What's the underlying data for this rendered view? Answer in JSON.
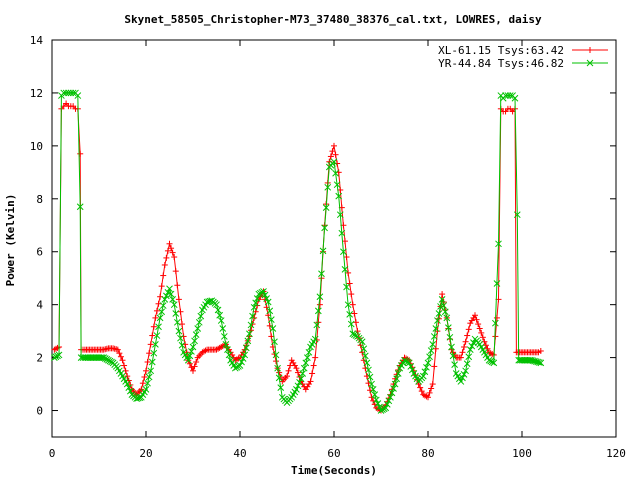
{
  "chart_data": {
    "type": "line",
    "title": "Skynet_58505_Christopher-M73_37480_38376_cal.txt, LOWRES, daisy",
    "xlabel": "Time(Seconds)",
    "ylabel": "Power (Kelvin)",
    "xlim": [
      0,
      120
    ],
    "ylim": [
      -1,
      14
    ],
    "x_ticks": [
      0,
      20,
      40,
      60,
      80,
      100,
      120
    ],
    "y_ticks": [
      0,
      2,
      4,
      6,
      8,
      10,
      12,
      14
    ],
    "grid": false,
    "legend_position": "top-right",
    "series": [
      {
        "name": "XL-61.15 Tsys:63.42",
        "color": "#ff0000",
        "marker": "plus",
        "points": [
          [
            0.5,
            2.3
          ],
          [
            1.5,
            2.4
          ],
          [
            2,
            11.4
          ],
          [
            2.5,
            11.5
          ],
          [
            3,
            11.6
          ],
          [
            3.5,
            11.5
          ],
          [
            4,
            11.5
          ],
          [
            4.5,
            11.5
          ],
          [
            5,
            11.4
          ],
          [
            5.5,
            11.4
          ],
          [
            6,
            9.7
          ],
          [
            6.2,
            2.3
          ],
          [
            7,
            2.3
          ],
          [
            8,
            2.3
          ],
          [
            9,
            2.3
          ],
          [
            10,
            2.3
          ],
          [
            11,
            2.3
          ],
          [
            12,
            2.35
          ],
          [
            13,
            2.35
          ],
          [
            14,
            2.3
          ],
          [
            15,
            1.9
          ],
          [
            16,
            1.3
          ],
          [
            17,
            0.8
          ],
          [
            18,
            0.6
          ],
          [
            19,
            0.8
          ],
          [
            20,
            1.5
          ],
          [
            21,
            2.5
          ],
          [
            22,
            3.5
          ],
          [
            23,
            4.3
          ],
          [
            24,
            5.5
          ],
          [
            25,
            6.3
          ],
          [
            26,
            5.8
          ],
          [
            27,
            4.2
          ],
          [
            28,
            2.8
          ],
          [
            29,
            1.9
          ],
          [
            30,
            1.5
          ],
          [
            31,
            2.0
          ],
          [
            32,
            2.2
          ],
          [
            33,
            2.3
          ],
          [
            34,
            2.3
          ],
          [
            35,
            2.3
          ],
          [
            36,
            2.4
          ],
          [
            37,
            2.5
          ],
          [
            38,
            2.2
          ],
          [
            39,
            1.9
          ],
          [
            40,
            2.0
          ],
          [
            41,
            2.3
          ],
          [
            42,
            2.8
          ],
          [
            43,
            3.5
          ],
          [
            44,
            4.2
          ],
          [
            45,
            4.5
          ],
          [
            46,
            3.6
          ],
          [
            47,
            2.4
          ],
          [
            48,
            1.6
          ],
          [
            49,
            1.1
          ],
          [
            50,
            1.3
          ],
          [
            51,
            1.9
          ],
          [
            52,
            1.6
          ],
          [
            53,
            1.1
          ],
          [
            54,
            0.8
          ],
          [
            55,
            1.1
          ],
          [
            56,
            2.0
          ],
          [
            57,
            4.0
          ],
          [
            58,
            7.0
          ],
          [
            59,
            9.4
          ],
          [
            60,
            10.0
          ],
          [
            61,
            9.0
          ],
          [
            62,
            7.0
          ],
          [
            63,
            5.2
          ],
          [
            64,
            4.0
          ],
          [
            65,
            3.0
          ],
          [
            66,
            2.2
          ],
          [
            67,
            1.3
          ],
          [
            68,
            0.5
          ],
          [
            69,
            0.1
          ],
          [
            70,
            0.0
          ],
          [
            71,
            0.2
          ],
          [
            72,
            0.6
          ],
          [
            73,
            1.2
          ],
          [
            74,
            1.7
          ],
          [
            75,
            2.0
          ],
          [
            76,
            1.9
          ],
          [
            77,
            1.5
          ],
          [
            78,
            1.0
          ],
          [
            79,
            0.6
          ],
          [
            80,
            0.5
          ],
          [
            81,
            1.0
          ],
          [
            82,
            3.0
          ],
          [
            83,
            4.4
          ],
          [
            84,
            3.5
          ],
          [
            85,
            2.3
          ],
          [
            86,
            2.0
          ],
          [
            87,
            2.0
          ],
          [
            88,
            2.6
          ],
          [
            89,
            3.3
          ],
          [
            90,
            3.6
          ],
          [
            91,
            3.1
          ],
          [
            92,
            2.6
          ],
          [
            93,
            2.2
          ],
          [
            94,
            2.1
          ],
          [
            95,
            4.2
          ],
          [
            95.5,
            11.4
          ],
          [
            96,
            11.3
          ],
          [
            96.5,
            11.3
          ],
          [
            97,
            11.4
          ],
          [
            97.5,
            11.4
          ],
          [
            98,
            11.3
          ],
          [
            98.5,
            11.4
          ],
          [
            98.8,
            2.2
          ],
          [
            99.5,
            2.2
          ],
          [
            100.5,
            2.2
          ],
          [
            101.5,
            2.2
          ],
          [
            102.5,
            2.2
          ],
          [
            103.5,
            2.2
          ],
          [
            104,
            2.25
          ]
        ]
      },
      {
        "name": "YR-44.84 Tsys:46.82",
        "color": "#00c000",
        "marker": "cross",
        "points": [
          [
            0.5,
            2.0
          ],
          [
            1.5,
            2.1
          ],
          [
            2,
            11.9
          ],
          [
            2.5,
            12.0
          ],
          [
            3,
            12.0
          ],
          [
            3.5,
            12.0
          ],
          [
            4,
            12.0
          ],
          [
            4.5,
            12.0
          ],
          [
            5,
            12.0
          ],
          [
            5.5,
            11.9
          ],
          [
            6,
            7.7
          ],
          [
            6.2,
            2.0
          ],
          [
            7,
            2.0
          ],
          [
            8,
            2.0
          ],
          [
            9,
            2.0
          ],
          [
            10,
            2.0
          ],
          [
            11,
            2.0
          ],
          [
            12,
            1.9
          ],
          [
            13,
            1.8
          ],
          [
            14,
            1.6
          ],
          [
            15,
            1.3
          ],
          [
            16,
            1.0
          ],
          [
            17,
            0.6
          ],
          [
            18,
            0.45
          ],
          [
            19,
            0.5
          ],
          [
            20,
            0.8
          ],
          [
            21,
            1.5
          ],
          [
            22,
            2.5
          ],
          [
            23,
            3.5
          ],
          [
            24,
            4.2
          ],
          [
            25,
            4.6
          ],
          [
            26,
            4.0
          ],
          [
            27,
            3.0
          ],
          [
            28,
            2.2
          ],
          [
            29,
            1.9
          ],
          [
            30,
            2.4
          ],
          [
            31,
            3.1
          ],
          [
            32,
            3.8
          ],
          [
            33,
            4.1
          ],
          [
            34,
            4.15
          ],
          [
            35,
            4.0
          ],
          [
            36,
            3.4
          ],
          [
            37,
            2.5
          ],
          [
            38,
            1.9
          ],
          [
            39,
            1.6
          ],
          [
            40,
            1.7
          ],
          [
            41,
            2.1
          ],
          [
            42,
            2.9
          ],
          [
            43,
            3.9
          ],
          [
            44,
            4.4
          ],
          [
            45,
            4.5
          ],
          [
            46,
            4.1
          ],
          [
            47,
            3.1
          ],
          [
            48,
            1.6
          ],
          [
            49,
            0.5
          ],
          [
            50,
            0.3
          ],
          [
            51,
            0.5
          ],
          [
            52,
            0.8
          ],
          [
            53,
            1.2
          ],
          [
            54,
            1.8
          ],
          [
            55,
            2.4
          ],
          [
            56,
            2.7
          ],
          [
            57,
            4.3
          ],
          [
            58,
            6.9
          ],
          [
            59,
            9.2
          ],
          [
            60,
            9.4
          ],
          [
            61,
            8.1
          ],
          [
            62,
            6.0
          ],
          [
            63,
            4.0
          ],
          [
            64,
            2.9
          ],
          [
            65,
            2.8
          ],
          [
            66,
            2.6
          ],
          [
            67,
            1.8
          ],
          [
            68,
            1.0
          ],
          [
            69,
            0.4
          ],
          [
            70,
            0.0
          ],
          [
            71,
            0.1
          ],
          [
            72,
            0.5
          ],
          [
            73,
            1.0
          ],
          [
            74,
            1.6
          ],
          [
            75,
            1.9
          ],
          [
            76,
            1.8
          ],
          [
            77,
            1.4
          ],
          [
            78,
            1.1
          ],
          [
            79,
            1.3
          ],
          [
            80,
            1.8
          ],
          [
            81,
            2.5
          ],
          [
            82,
            3.4
          ],
          [
            83,
            4.2
          ],
          [
            84,
            3.5
          ],
          [
            85,
            2.4
          ],
          [
            86,
            1.4
          ],
          [
            87,
            1.1
          ],
          [
            88,
            1.5
          ],
          [
            89,
            2.3
          ],
          [
            90,
            2.7
          ],
          [
            91,
            2.5
          ],
          [
            92,
            2.2
          ],
          [
            93,
            1.9
          ],
          [
            94,
            1.8
          ],
          [
            95,
            6.3
          ],
          [
            95.5,
            11.9
          ],
          [
            96,
            11.8
          ],
          [
            96.5,
            11.9
          ],
          [
            97,
            11.9
          ],
          [
            97.5,
            11.9
          ],
          [
            98,
            11.9
          ],
          [
            98.5,
            11.8
          ],
          [
            99,
            7.4
          ],
          [
            99.3,
            1.9
          ],
          [
            100,
            1.9
          ],
          [
            101,
            1.9
          ],
          [
            102,
            1.9
          ],
          [
            103,
            1.85
          ],
          [
            104,
            1.8
          ]
        ]
      }
    ]
  }
}
